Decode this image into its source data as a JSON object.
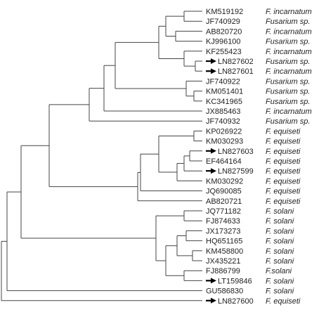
{
  "taxa": [
    {
      "accession": "KM519192",
      "species": "F. incarnatum",
      "highlighted": false
    },
    {
      "accession": "JF740929",
      "species": "Fusarium sp.",
      "highlighted": false
    },
    {
      "accession": "AB820720",
      "species": "F. incarnatum",
      "highlighted": false
    },
    {
      "accession": "KJ996100",
      "species": "Fusarium sp.",
      "highlighted": false
    },
    {
      "accession": "KF255423",
      "species": "F. incarnatum",
      "highlighted": false
    },
    {
      "accession": "LN827602",
      "species": "Fusarium sp.",
      "highlighted": true
    },
    {
      "accession": "LN827601",
      "species": "F. incarnatum",
      "highlighted": true
    },
    {
      "accession": "JF740922",
      "species": "Fusarium sp.",
      "highlighted": false
    },
    {
      "accession": "KM051401",
      "species": "Fusarium sp.",
      "highlighted": false
    },
    {
      "accession": "KC341965",
      "species": "Fusarium sp.",
      "highlighted": false
    },
    {
      "accession": "JX885463",
      "species": "F. incarnatum",
      "highlighted": false
    },
    {
      "accession": "JF740932",
      "species": "Fusarium sp.",
      "highlighted": false
    },
    {
      "accession": "KP026922",
      "species": "F. equiseti",
      "highlighted": false
    },
    {
      "accession": "KM030293",
      "species": "F. equiseti",
      "highlighted": false
    },
    {
      "accession": "LN827603",
      "species": "F. equiseti",
      "highlighted": true
    },
    {
      "accession": "EF464164",
      "species": "F. equiseti",
      "highlighted": false
    },
    {
      "accession": "LN827599",
      "species": "F. equiseti",
      "highlighted": true
    },
    {
      "accession": "KM030292",
      "species": "F. equiseti",
      "highlighted": false
    },
    {
      "accession": "JQ690085",
      "species": "F. equiseti",
      "highlighted": false
    },
    {
      "accession": "AB820721",
      "species": "F. equiseti",
      "highlighted": false
    },
    {
      "accession": "JQ771182",
      "species": "F. solani",
      "highlighted": false
    },
    {
      "accession": "FJ874633",
      "species": "F. solani",
      "highlighted": false
    },
    {
      "accession": "JX173273",
      "species": "F. solani",
      "highlighted": false
    },
    {
      "accession": "HQ651165",
      "species": "F. solani",
      "highlighted": false
    },
    {
      "accession": "KM458800",
      "species": "F. solani",
      "highlighted": false
    },
    {
      "accession": "JX435221",
      "species": "F. solani",
      "highlighted": false
    },
    {
      "accession": "FJ886799",
      "species": "F.solani",
      "highlighted": false
    },
    {
      "accession": "LT159846",
      "species": "F. solani",
      "highlighted": true
    },
    {
      "accession": "GU586830",
      "species": "F. solani",
      "highlighted": false
    },
    {
      "accession": "LN827600",
      "species": "F. equiseti",
      "highlighted": true
    }
  ],
  "colors": {
    "line": "#444444",
    "text": "#222222",
    "arrow": "#000000"
  },
  "marker_icon": "right-arrow-icon"
}
